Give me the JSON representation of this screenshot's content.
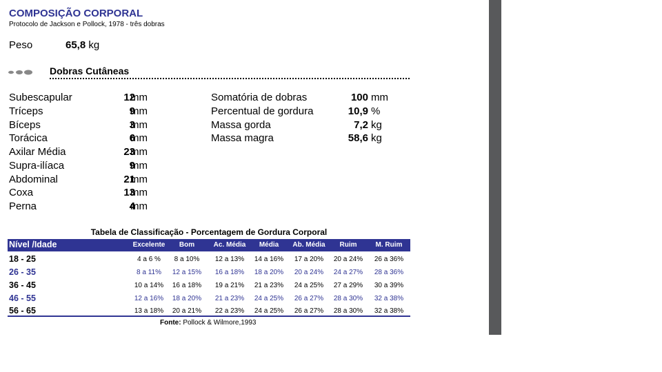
{
  "header": {
    "title": "COMPOSIÇÃO CORPORAL",
    "subtitle": "Protocolo de Jackson e Pollock, 1978 - três dobras"
  },
  "peso": {
    "label": "Peso",
    "value": "65,8",
    "unit": "kg"
  },
  "section": {
    "title": "Dobras Cutâneas"
  },
  "skinfolds": [
    {
      "label": "Subescapular",
      "value": "12",
      "unit": "mm"
    },
    {
      "label": "Tríceps",
      "value": "9",
      "unit": "mm"
    },
    {
      "label": "Bíceps",
      "value": "3",
      "unit": "mm"
    },
    {
      "label": "Torácica",
      "value": "6",
      "unit": "mm"
    },
    {
      "label": "Axilar Média",
      "value": "23",
      "unit": "mm"
    },
    {
      "label": "Supra-ilíaca",
      "value": "9",
      "unit": "mm"
    },
    {
      "label": "Abdominal",
      "value": "21",
      "unit": "mm"
    },
    {
      "label": "Coxa",
      "value": "13",
      "unit": "mm"
    },
    {
      "label": "Perna",
      "value": "4",
      "unit": "mm"
    }
  ],
  "results": [
    {
      "label": "Somatória de dobras",
      "value": "100",
      "unit": "mm"
    },
    {
      "label": "Percentual de gordura",
      "value": "10,9",
      "unit": "%"
    },
    {
      "label": "Massa gorda",
      "value": "7,2",
      "unit": "kg"
    },
    {
      "label": "Massa magra",
      "value": "58,6",
      "unit": "kg"
    }
  ],
  "table": {
    "title": "Tabela de Classificação - Porcentagem de Gordura Corporal",
    "first_header": "Nível /Idade",
    "categories": [
      "Excelente",
      "Bom",
      "Ac. Média",
      "Média",
      "Ab. Média",
      "Ruim",
      "M. Ruim"
    ],
    "rows": [
      {
        "age": "18 - 25",
        "cells": [
          "4 a 6 %",
          "8 a 10%",
          "12 a 13%",
          "14 a 16%",
          "17 a 20%",
          "20 a 24%",
          "26 a 36%"
        ]
      },
      {
        "age": "26 - 35",
        "cells": [
          "8 a 11%",
          "12 a 15%",
          "16 a 18%",
          "18 a 20%",
          "20 a 24%",
          "24 a 27%",
          "28 a 36%"
        ]
      },
      {
        "age": "36 - 45",
        "cells": [
          "10 a 14%",
          "16 a 18%",
          "19 a 21%",
          "21 a 23%",
          "24 a 25%",
          "27 a 29%",
          "30 a 39%"
        ]
      },
      {
        "age": "46 - 55",
        "cells": [
          "12 a 16%",
          "18 a 20%",
          "21 a 23%",
          "24 a 25%",
          "26 a 27%",
          "28 a 30%",
          "32 a 38%"
        ]
      },
      {
        "age": "56 - 65",
        "cells": [
          "13 a 18%",
          "20 a 21%",
          "22 a 23%",
          "24 a 25%",
          "26 a 27%",
          "28 a 30%",
          "32 a 38%"
        ]
      }
    ],
    "source_label": "Fonte:",
    "source_text": "Pollock & Wilmore,1993"
  },
  "colors": {
    "accent": "#2f3493",
    "scrollbar": "#58595b"
  }
}
